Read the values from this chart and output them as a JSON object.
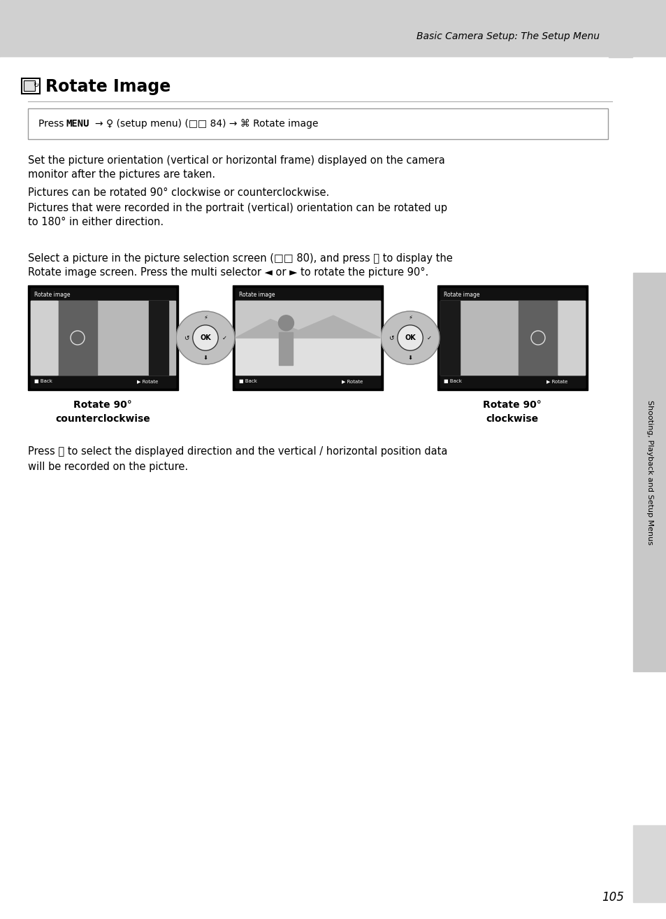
{
  "bg_color": "#ffffff",
  "header_bg": "#d0d0d0",
  "header_text": "Basic Camera Setup: The Setup Menu",
  "title_text": "Rotate Image",
  "body_para1_l1": "Set the picture orientation (vertical or horizontal frame) displayed on the camera",
  "body_para1_l2": "monitor after the pictures are taken.",
  "body_para2": "Pictures can be rotated 90° clockwise or counterclockwise.",
  "body_para3_l1": "Pictures that were recorded in the portrait (vertical) orientation can be rotated up",
  "body_para3_l2": "to 180° in either direction.",
  "select_l1": "Select a picture in the picture selection screen (□□ 80), and press ⓞ to display the",
  "select_l2": "Rotate image screen. Press the multi selector ◄ or ► to rotate the picture 90°.",
  "caption_left_1": "Rotate 90°",
  "caption_left_2": "counterclockwise",
  "caption_right_1": "Rotate 90°",
  "caption_right_2": "clockwise",
  "press_l1": "Press ⓞ to select the displayed direction and the vertical / horizontal position data",
  "press_l2": "will be recorded on the picture.",
  "page_num": "105",
  "sidebar_text": "Shooting, Playback and Setup Menus"
}
